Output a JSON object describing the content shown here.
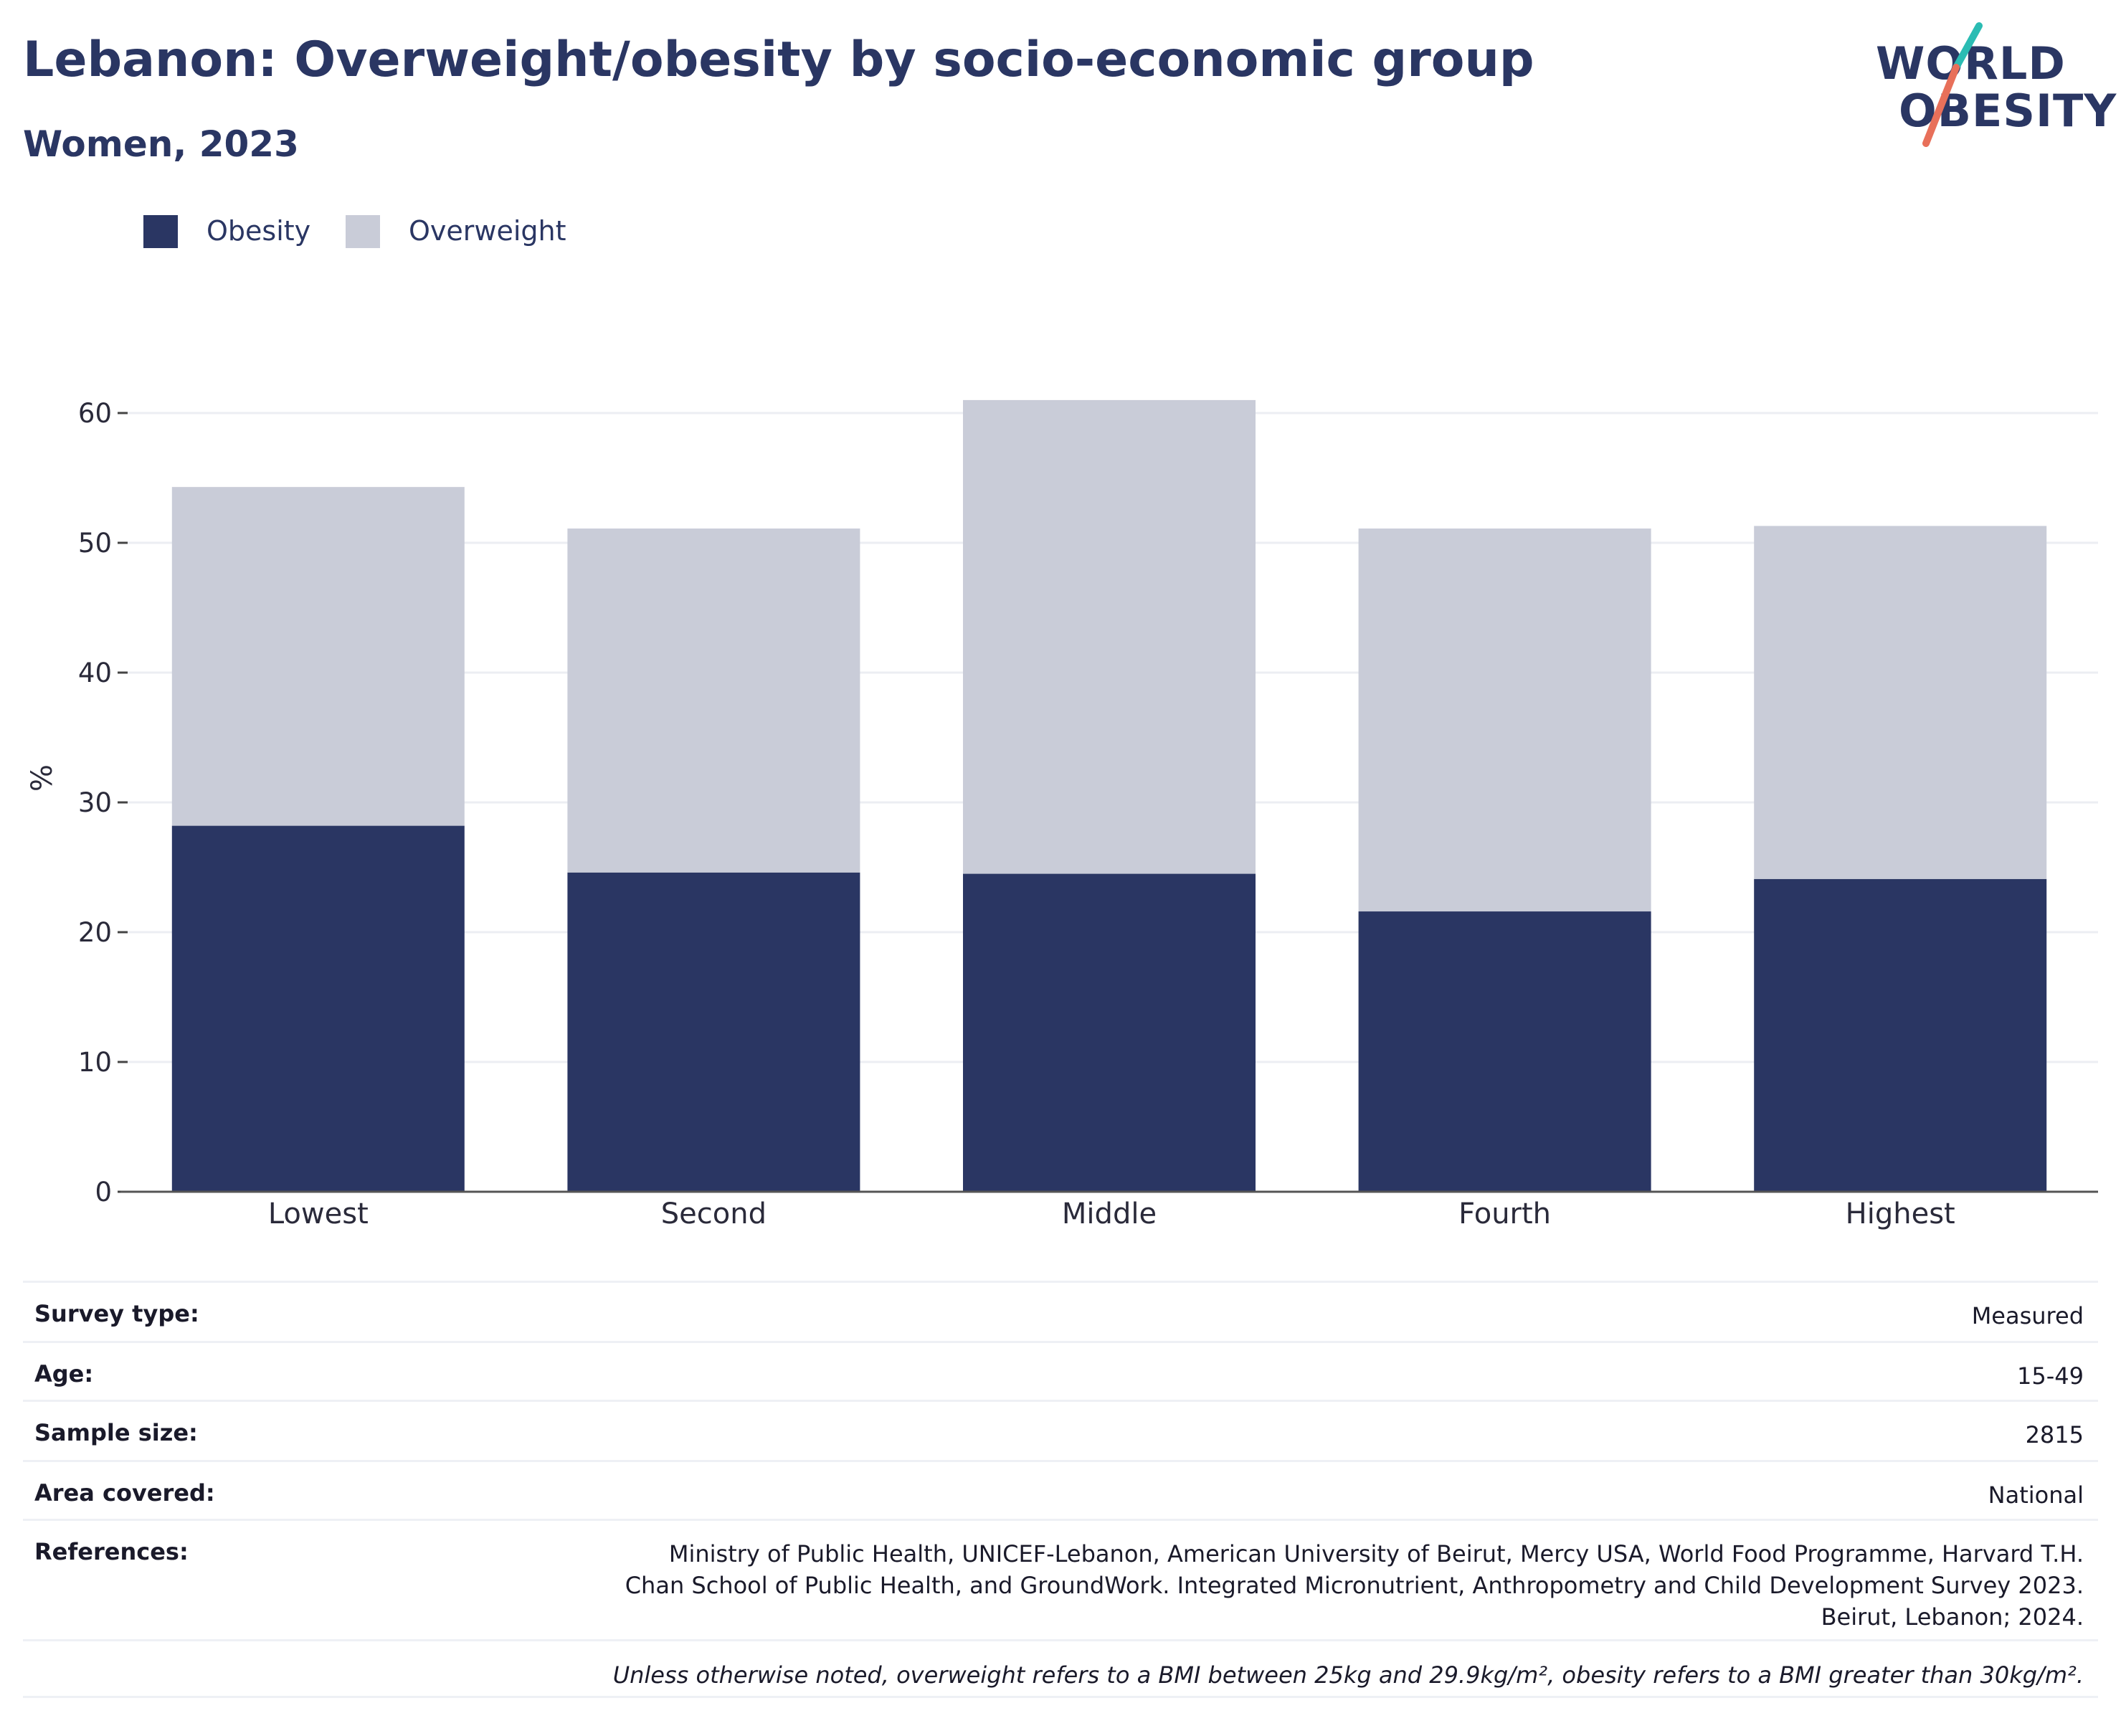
{
  "title": "Lebanon: Overweight/obesity by socio-economic group",
  "subtitle": "Women, 2023",
  "logo": {
    "line1": "WORLD",
    "line2": "OBESITY",
    "accent_teal": "#2bbcb3",
    "accent_coral": "#e8705a"
  },
  "colors": {
    "obesity": "#2a3663",
    "overweight": "#c9ccd8",
    "text": "#2a3663",
    "grid": "#eceef3"
  },
  "legend": [
    {
      "label": "Obesity",
      "color": "#2a3663"
    },
    {
      "label": "Overweight",
      "color": "#c9ccd8"
    }
  ],
  "chart_data": {
    "type": "bar",
    "stacked": true,
    "categories": [
      "Lowest",
      "Second",
      "Middle",
      "Fourth",
      "Highest"
    ],
    "series": [
      {
        "name": "Obesity",
        "values": [
          28.2,
          24.6,
          24.5,
          21.6,
          24.1
        ]
      },
      {
        "name": "Overweight",
        "values": [
          26.1,
          26.5,
          36.5,
          29.5,
          27.2
        ]
      }
    ],
    "ylabel": "%",
    "ylim": [
      0,
      62
    ],
    "yticks": [
      0,
      10,
      20,
      30,
      40,
      50,
      60
    ],
    "grid": true,
    "legend_position": "top-left"
  },
  "info": [
    {
      "key": "Survey type:",
      "value": "Measured"
    },
    {
      "key": "Age:",
      "value": "15-49"
    },
    {
      "key": "Sample size:",
      "value": "2815"
    },
    {
      "key": "Area covered:",
      "value": "National"
    },
    {
      "key": "References:",
      "value": "Ministry of Public Health, UNICEF-Lebanon, American University of Beirut, Mercy USA, World Food Programme, Harvard T.H. Chan School of Public Health, and GroundWork. Integrated Micronutrient, Anthropometry and Child Development Survey 2023. Beirut, Lebanon; 2024."
    }
  ],
  "note": "Unless otherwise noted, overweight refers to a BMI between 25kg and 29.9kg/m², obesity refers to a BMI greater than 30kg/m²."
}
